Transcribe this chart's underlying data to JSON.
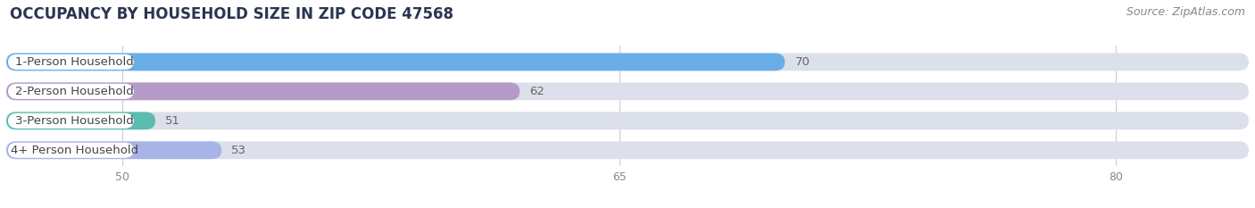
{
  "title": "OCCUPANCY BY HOUSEHOLD SIZE IN ZIP CODE 47568",
  "source": "Source: ZipAtlas.com",
  "categories": [
    "1-Person Household",
    "2-Person Household",
    "3-Person Household",
    "4+ Person Household"
  ],
  "values": [
    70,
    62,
    51,
    53
  ],
  "bar_colors": [
    "#6aaee8",
    "#b59cc8",
    "#5bbcb0",
    "#a8b4e8"
  ],
  "bar_bg_color": "#dce0ea",
  "bg_color": "#ffffff",
  "label_pill_color": "#ffffff",
  "label_text_color": "#444444",
  "value_text_color": "#666666",
  "xlim_min": 46.5,
  "xlim_max": 84,
  "xticks": [
    50,
    65,
    80
  ],
  "grid_color": "#cccccc",
  "title_fontsize": 12,
  "source_fontsize": 9,
  "label_fontsize": 9.5,
  "value_fontsize": 9.5,
  "bar_height": 0.6,
  "figsize": [
    14.06,
    2.33
  ],
  "dpi": 100
}
